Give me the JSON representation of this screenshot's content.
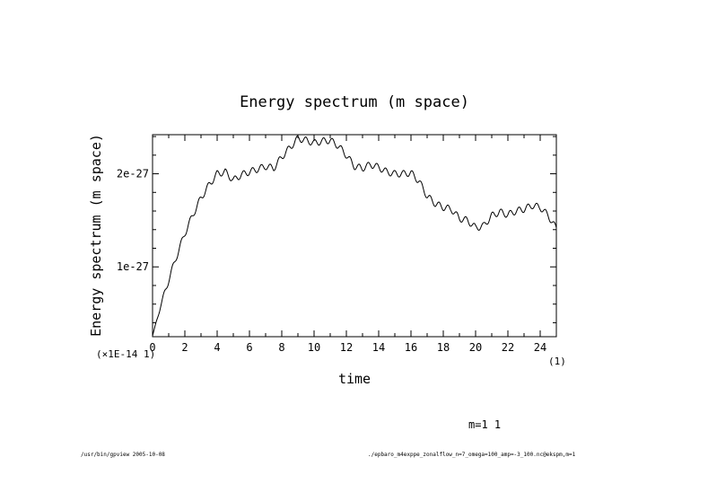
{
  "chart_data": {
    "type": "line",
    "title": "Energy spectrum (m space)",
    "xlabel": "time",
    "ylabel": "Energy spectrum (m space)",
    "x_scale_note": "(×1E-14 1)",
    "x_unit_note": "(1)",
    "xlim": [
      0,
      25
    ],
    "ylim": [
      2.5e-28,
      2.42e-27
    ],
    "x_ticks": [
      0,
      2,
      4,
      6,
      8,
      10,
      12,
      14,
      16,
      18,
      20,
      22,
      24
    ],
    "x_tick_labels": [
      "0",
      "2",
      "4",
      "6",
      "8",
      "10",
      "12",
      "14",
      "16",
      "18",
      "20",
      "22",
      "24"
    ],
    "y_ticks": [
      1e-27,
      2e-27
    ],
    "y_tick_labels": [
      "1e-27",
      "2e-27"
    ],
    "series": [
      {
        "name": "m=1 1",
        "x": [
          0,
          0.5,
          1,
          1.5,
          2,
          2.5,
          3,
          3.5,
          4,
          4.5,
          5,
          5.5,
          6,
          6.5,
          7,
          7.5,
          8,
          8.5,
          9,
          9.5,
          10,
          10.5,
          11,
          11.5,
          12,
          12.5,
          13,
          13.5,
          14,
          14.5,
          15,
          15.5,
          16,
          16.5,
          17,
          17.5,
          18,
          18.5,
          19,
          19.5,
          20,
          20.5,
          21,
          21.5,
          22,
          22.5,
          23,
          23.5,
          24,
          24.5,
          25
        ],
        "values": [
          2.6e-28,
          5.8e-28,
          8.6e-28,
          1.12e-27,
          1.36e-27,
          1.56e-27,
          1.74e-27,
          1.88e-27,
          2e-27,
          2.02e-27,
          1.93e-27,
          1.99e-27,
          2.02e-27,
          2.05e-27,
          2.08e-27,
          2.06e-27,
          2.18e-27,
          2.28e-27,
          2.38e-27,
          2.36e-27,
          2.33e-27,
          2.35e-27,
          2.36e-27,
          2.3e-27,
          2.2e-27,
          2.08e-27,
          2.06e-27,
          2.1e-27,
          2.07e-27,
          2.02e-27,
          2e-27,
          2e-27,
          2.01e-27,
          1.92e-27,
          1.76e-27,
          1.68e-27,
          1.64e-27,
          1.62e-27,
          1.52e-27,
          1.5e-27,
          1.42e-27,
          1.44e-27,
          1.55e-27,
          1.59e-27,
          1.56e-27,
          1.6e-27,
          1.62e-27,
          1.66e-27,
          1.64e-27,
          1.55e-27,
          1.41e-27
        ],
        "oscillation_amplitude": 3.5e-29,
        "oscillation_period": 0.55
      }
    ],
    "legend": "m=1 1"
  },
  "footer": {
    "left": "/usr/bin/gpview  2005-10-08",
    "right": "./epbaro_m4exppe_zonalflow_n=7_omega=100_amp=-3_100.nc@ekspm,m=1"
  }
}
